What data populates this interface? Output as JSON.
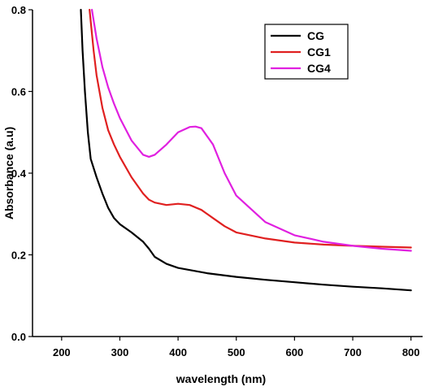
{
  "chart_data": {
    "type": "line",
    "xlabel": "wavelength (nm)",
    "ylabel": "Absorbance (a.u)",
    "xlim": [
      150,
      820
    ],
    "ylim": [
      0.0,
      0.8
    ],
    "xticks": [
      200,
      300,
      400,
      500,
      600,
      700,
      800
    ],
    "xtick_labels": [
      "200",
      "300",
      "400",
      "500",
      "600",
      "700",
      "800"
    ],
    "yticks": [
      0.0,
      0.2,
      0.4,
      0.6,
      0.8
    ],
    "ytick_labels": [
      "0.0",
      "0.2",
      "0.4",
      "0.6",
      "0.8"
    ],
    "grid": false,
    "legend_position": "top-right",
    "series": [
      {
        "name": "CG",
        "color": "#000000",
        "x": [
          233,
          236,
          240,
          245,
          250,
          260,
          270,
          280,
          290,
          300,
          320,
          340,
          350,
          360,
          380,
          400,
          450,
          500,
          550,
          600,
          650,
          700,
          750,
          800
        ],
        "y": [
          0.8,
          0.7,
          0.6,
          0.5,
          0.435,
          0.39,
          0.35,
          0.315,
          0.29,
          0.275,
          0.255,
          0.232,
          0.215,
          0.195,
          0.178,
          0.168,
          0.155,
          0.146,
          0.139,
          0.133,
          0.127,
          0.122,
          0.118,
          0.113
        ]
      },
      {
        "name": "CG1",
        "color": "#e02020",
        "x": [
          248,
          255,
          260,
          270,
          280,
          290,
          300,
          320,
          340,
          350,
          360,
          380,
          400,
          420,
          440,
          460,
          480,
          500,
          550,
          600,
          650,
          700,
          750,
          800
        ],
        "y": [
          0.8,
          0.7,
          0.64,
          0.56,
          0.505,
          0.47,
          0.44,
          0.39,
          0.35,
          0.335,
          0.328,
          0.322,
          0.325,
          0.322,
          0.31,
          0.29,
          0.27,
          0.255,
          0.24,
          0.23,
          0.225,
          0.222,
          0.22,
          0.218
        ]
      },
      {
        "name": "CG4",
        "color": "#e020e0",
        "x": [
          252,
          260,
          270,
          280,
          290,
          300,
          320,
          340,
          350,
          360,
          380,
          400,
          420,
          430,
          440,
          460,
          480,
          500,
          550,
          600,
          650,
          700,
          750,
          800
        ],
        "y": [
          0.8,
          0.73,
          0.66,
          0.61,
          0.57,
          0.535,
          0.48,
          0.445,
          0.44,
          0.445,
          0.47,
          0.5,
          0.513,
          0.514,
          0.51,
          0.47,
          0.4,
          0.345,
          0.28,
          0.248,
          0.232,
          0.222,
          0.215,
          0.21
        ]
      }
    ]
  }
}
